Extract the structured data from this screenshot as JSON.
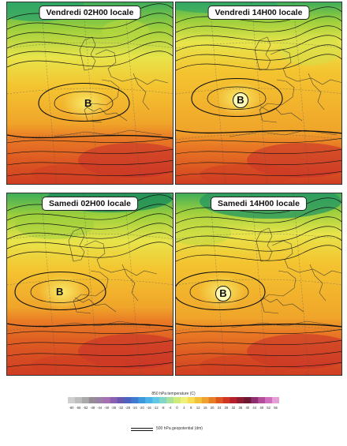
{
  "panels": [
    {
      "title": "Vendredi 02H00 locale",
      "low_label": "B"
    },
    {
      "title": "Vendredi 14H00 locale",
      "low_label": "B"
    },
    {
      "title": "Samedi 02H00 locale",
      "low_label": "B"
    },
    {
      "title": "Samedi 14H00 locale",
      "low_label": "B"
    }
  ],
  "legend": {
    "temperature_title": "850 hPa temperature (C)",
    "ticks": [
      -60,
      -56,
      -52,
      -48,
      -44,
      -40,
      -36,
      -32,
      -28,
      -24,
      -20,
      -16,
      -12,
      -8,
      -4,
      0,
      4,
      8,
      12,
      16,
      20,
      24,
      28,
      32,
      36,
      40,
      44,
      48,
      52,
      56
    ],
    "colors": [
      "#cfcfcf",
      "#bdbdbd",
      "#a9a9a9",
      "#958b95",
      "#9a7fa6",
      "#a86fb0",
      "#8b5fb0",
      "#6a57b0",
      "#4e63be",
      "#3e7ad0",
      "#3e98de",
      "#4bb4e6",
      "#62c7e6",
      "#82d6c8",
      "#a7e19a",
      "#cdea7a",
      "#eef07a",
      "#f7dd55",
      "#f2c23a",
      "#eda22d",
      "#e77d24",
      "#df5720",
      "#cf3521",
      "#b51f2a",
      "#8d1a2f",
      "#6e1730",
      "#8c2f6e",
      "#b34d9c",
      "#d06fc0",
      "#e6a0d8"
    ],
    "geopotential_label": "500 hPa geopotential (dm)"
  }
}
